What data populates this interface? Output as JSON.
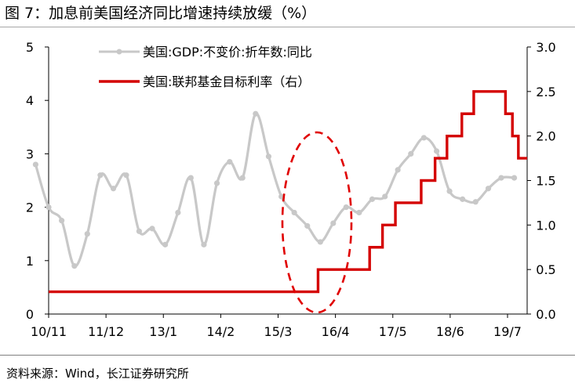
{
  "title": "图 7：加息前美国经济同比增速持续放缓（%）",
  "source": "资料来源：Wind，长江证券研究所",
  "chart_data": {
    "type": "line",
    "x_tick_labels": [
      "10/11",
      "11/12",
      "13/1",
      "14/2",
      "15/3",
      "16/4",
      "17/5",
      "18/6",
      "19/7"
    ],
    "y_left": {
      "ticks": [
        "0",
        "1",
        "2",
        "3",
        "4",
        "5"
      ],
      "ylim": [
        0,
        5
      ]
    },
    "y_right": {
      "ticks": [
        "0.0",
        "0.5",
        "1.0",
        "1.5",
        "2.0",
        "2.5",
        "3.0"
      ],
      "ylim": [
        0,
        3
      ]
    },
    "grid": false,
    "legend_position": "top-center",
    "series": [
      {
        "name": "美国:GDP:不变价:折年数:同比",
        "axis": "left",
        "color": "#c8c8c8",
        "x": [
          "2010-07-01",
          "2010-10-01",
          "2011-01-01",
          "2011-04-01",
          "2011-07-01",
          "2011-10-01",
          "2012-01-01",
          "2012-04-01",
          "2012-07-01",
          "2012-10-01",
          "2013-01-01",
          "2013-04-01",
          "2013-07-01",
          "2013-10-01",
          "2014-01-01",
          "2014-04-01",
          "2014-07-01",
          "2014-10-01",
          "2015-01-01",
          "2015-04-01",
          "2015-07-01",
          "2015-10-01",
          "2016-01-01",
          "2016-04-01",
          "2016-07-01",
          "2016-10-01",
          "2017-01-01",
          "2017-04-01",
          "2017-07-01",
          "2017-10-01",
          "2018-01-01",
          "2018-04-01",
          "2018-07-01",
          "2018-10-01",
          "2019-01-01",
          "2019-04-01",
          "2019-07-01",
          "2019-10-01"
        ],
        "values": [
          2.8,
          2.0,
          1.75,
          0.9,
          1.5,
          2.6,
          2.35,
          2.6,
          1.55,
          1.6,
          1.3,
          1.9,
          2.55,
          1.3,
          2.45,
          2.85,
          2.55,
          3.75,
          2.95,
          2.2,
          1.9,
          1.65,
          1.35,
          1.7,
          2.0,
          1.9,
          2.15,
          2.2,
          2.7,
          3.0,
          3.3,
          3.05,
          2.3,
          2.15,
          2.1,
          2.35,
          2.55,
          2.55
        ]
      },
      {
        "name": "美国:联邦基金目标利率（右）",
        "axis": "right",
        "color": "#d40000",
        "shape": "step",
        "x": [
          "2010-10-01",
          "2015-12-16",
          "2016-12-14",
          "2017-03-15",
          "2017-06-14",
          "2017-12-13",
          "2018-03-21",
          "2018-06-13",
          "2018-09-26",
          "2018-12-19",
          "2019-07-31",
          "2019-09-18",
          "2019-10-30",
          "2019-12-31"
        ],
        "values": [
          0.25,
          0.5,
          0.75,
          1.0,
          1.25,
          1.5,
          1.75,
          2.0,
          2.25,
          2.5,
          2.25,
          2.0,
          1.75,
          1.75
        ]
      }
    ],
    "annotations": [
      {
        "type": "dashed-ellipse",
        "color": "#e00000",
        "around": "2015-12"
      }
    ]
  }
}
